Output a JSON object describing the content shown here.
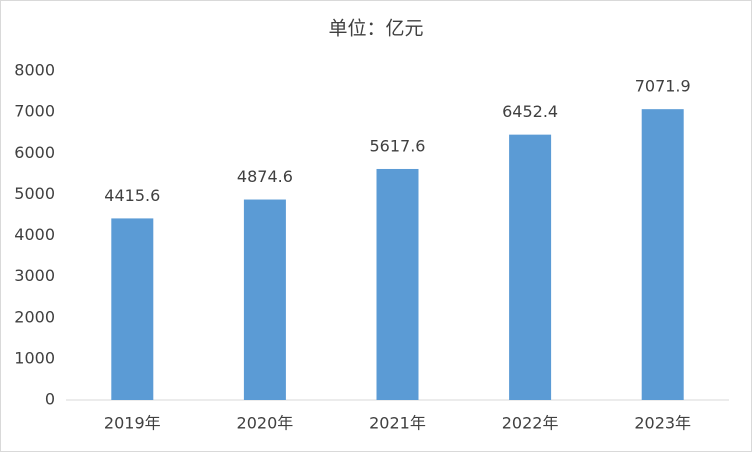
{
  "chart_data": {
    "type": "bar",
    "title": "单位：亿元",
    "categories": [
      "2019年",
      "2020年",
      "2021年",
      "2022年",
      "2023年"
    ],
    "values": [
      4415.6,
      4874.6,
      5617.6,
      6452.4,
      7071.9
    ],
    "color": "#5b9bd5",
    "ylim": [
      0,
      8000
    ],
    "yticks": [
      0,
      1000,
      2000,
      3000,
      4000,
      5000,
      6000,
      7000,
      8000
    ],
    "grid": false
  }
}
